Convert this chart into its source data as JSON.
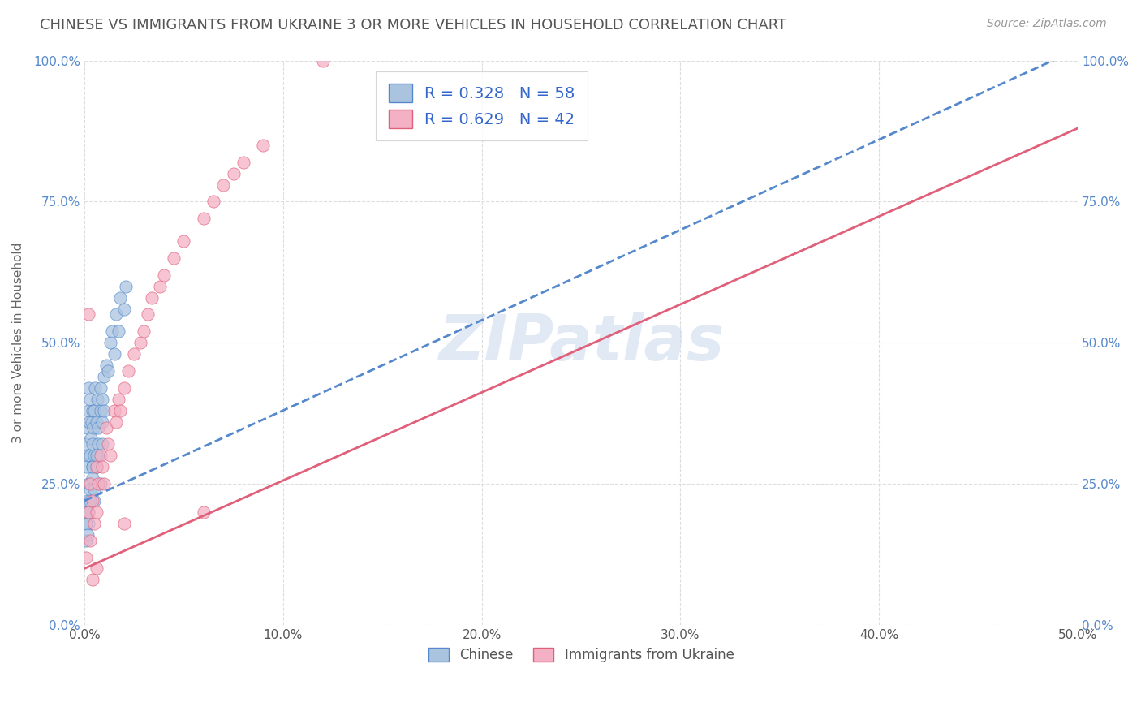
{
  "title": "CHINESE VS IMMIGRANTS FROM UKRAINE 3 OR MORE VEHICLES IN HOUSEHOLD CORRELATION CHART",
  "source": "Source: ZipAtlas.com",
  "ylabel": "3 or more Vehicles in Household",
  "xlim": [
    0.0,
    0.5
  ],
  "ylim": [
    0.0,
    1.0
  ],
  "xtick_labels": [
    "0.0%",
    "10.0%",
    "20.0%",
    "30.0%",
    "40.0%",
    "50.0%"
  ],
  "xtick_vals": [
    0.0,
    0.1,
    0.2,
    0.3,
    0.4,
    0.5
  ],
  "ytick_labels": [
    "0.0%",
    "25.0%",
    "50.0%",
    "75.0%",
    "100.0%"
  ],
  "ytick_vals": [
    0.0,
    0.25,
    0.5,
    0.75,
    1.0
  ],
  "series1_label": "Chinese",
  "series1_color": "#aac4e0",
  "series1_line_color": "#5588cc",
  "series1_R": 0.328,
  "series1_N": 58,
  "series2_label": "Immigrants from Ukraine",
  "series2_color": "#f4b0c4",
  "series2_line_color": "#e0607a",
  "series2_R": 0.629,
  "series2_N": 42,
  "watermark": "ZIPatlas",
  "background_color": "#ffffff",
  "grid_color": "#dddddd",
  "title_color": "#555555",
  "legend_text_color": "#3366cc",
  "chinese_x": [
    0.0008,
    0.001,
    0.0012,
    0.0015,
    0.002,
    0.002,
    0.0022,
    0.0025,
    0.003,
    0.003,
    0.0032,
    0.0035,
    0.004,
    0.004,
    0.0042,
    0.0045,
    0.005,
    0.005,
    0.0052,
    0.006,
    0.006,
    0.0065,
    0.007,
    0.007,
    0.008,
    0.008,
    0.009,
    0.009,
    0.01,
    0.01,
    0.011,
    0.012,
    0.013,
    0.014,
    0.015,
    0.016,
    0.017,
    0.018,
    0.02,
    0.021,
    0.001,
    0.0015,
    0.002,
    0.003,
    0.004,
    0.005,
    0.006,
    0.007,
    0.008,
    0.009,
    0.0008,
    0.001,
    0.0015,
    0.002,
    0.003,
    0.004,
    0.005,
    0.006
  ],
  "chinese_y": [
    0.32,
    0.28,
    0.35,
    0.3,
    0.38,
    0.25,
    0.42,
    0.36,
    0.4,
    0.3,
    0.33,
    0.36,
    0.38,
    0.28,
    0.32,
    0.35,
    0.38,
    0.3,
    0.42,
    0.36,
    0.28,
    0.4,
    0.35,
    0.32,
    0.38,
    0.42,
    0.4,
    0.36,
    0.44,
    0.38,
    0.46,
    0.45,
    0.5,
    0.52,
    0.48,
    0.55,
    0.52,
    0.58,
    0.56,
    0.6,
    0.2,
    0.22,
    0.18,
    0.24,
    0.26,
    0.22,
    0.28,
    0.3,
    0.25,
    0.32,
    0.15,
    0.18,
    0.16,
    0.2,
    0.22,
    0.28,
    0.24,
    0.3
  ],
  "ukraine_x": [
    0.001,
    0.002,
    0.003,
    0.003,
    0.004,
    0.005,
    0.006,
    0.006,
    0.007,
    0.008,
    0.009,
    0.01,
    0.011,
    0.012,
    0.013,
    0.015,
    0.016,
    0.017,
    0.018,
    0.02,
    0.022,
    0.025,
    0.028,
    0.03,
    0.032,
    0.034,
    0.038,
    0.04,
    0.045,
    0.05,
    0.06,
    0.065,
    0.07,
    0.075,
    0.08,
    0.09,
    0.002,
    0.004,
    0.006,
    0.02,
    0.06,
    0.12
  ],
  "ukraine_y": [
    0.12,
    0.2,
    0.15,
    0.25,
    0.22,
    0.18,
    0.28,
    0.2,
    0.25,
    0.3,
    0.28,
    0.25,
    0.35,
    0.32,
    0.3,
    0.38,
    0.36,
    0.4,
    0.38,
    0.42,
    0.45,
    0.48,
    0.5,
    0.52,
    0.55,
    0.58,
    0.6,
    0.62,
    0.65,
    0.68,
    0.72,
    0.75,
    0.78,
    0.8,
    0.82,
    0.85,
    0.55,
    0.08,
    0.1,
    0.18,
    0.2,
    1.0
  ],
  "blue_line_x": [
    0.0,
    0.5
  ],
  "blue_line_y": [
    0.22,
    1.02
  ],
  "pink_line_x": [
    0.0,
    0.5
  ],
  "pink_line_y": [
    0.1,
    0.88
  ]
}
